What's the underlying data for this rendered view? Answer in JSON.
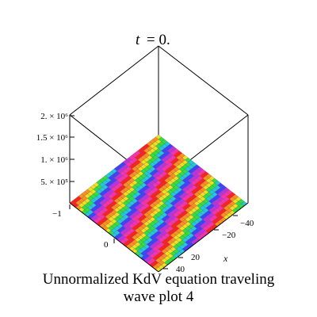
{
  "chart_data": {
    "type": "surface",
    "title_var": "t",
    "title_value": "= 0.",
    "x_axis": {
      "label": "x",
      "ticks": [
        "−40",
        "−20",
        "20",
        "40"
      ]
    },
    "y_axis": {
      "ticks": [
        "−1",
        "0"
      ]
    },
    "z_axis": {
      "ticks": [
        "2. × 10⁶",
        "1.5 × 10⁶",
        "1. × 10⁶",
        "5. × 10⁵"
      ],
      "range": [
        0,
        2000000
      ]
    },
    "surface": "nearly flat traveling wave, stripes in rainbow colors along the x direction",
    "colors": [
      "#ff2020",
      "#ff9020",
      "#f0e020",
      "#30e040",
      "#20c8e0",
      "#4040ff",
      "#c030e0",
      "#ff30b0"
    ]
  },
  "caption": {
    "line1": "Unnormalized KdV equation  traveling",
    "line2": "wave plot 4"
  }
}
